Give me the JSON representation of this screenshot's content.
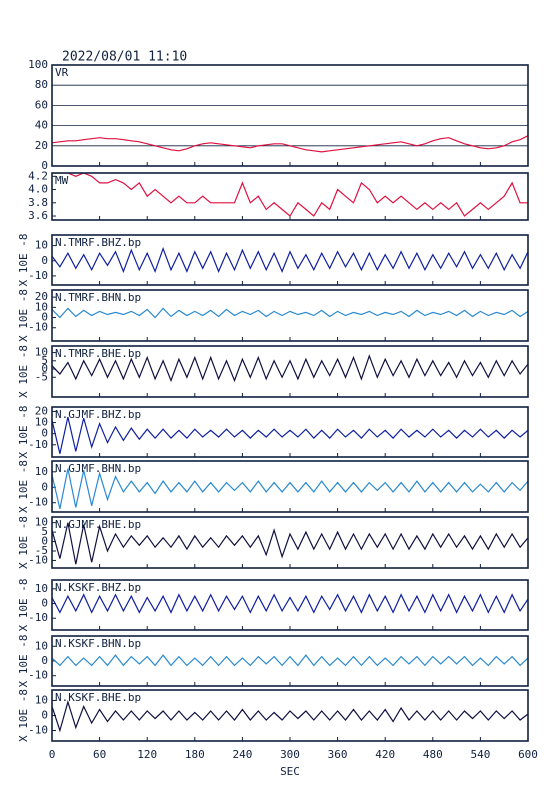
{
  "chart_data": {
    "type": "line",
    "title": "2022/08/01  11:10",
    "xlabel": "SEC",
    "x": [
      0,
      10,
      20,
      30,
      40,
      50,
      60,
      70,
      80,
      90,
      100,
      110,
      120,
      130,
      140,
      150,
      160,
      170,
      180,
      190,
      200,
      210,
      220,
      230,
      240,
      250,
      260,
      270,
      280,
      290,
      300,
      310,
      320,
      330,
      340,
      350,
      360,
      370,
      380,
      390,
      400,
      410,
      420,
      430,
      440,
      450,
      460,
      470,
      480,
      490,
      500,
      510,
      520,
      530,
      540,
      550,
      560,
      570,
      580,
      590,
      600
    ],
    "xlim": [
      0,
      600
    ],
    "xticks": [
      0,
      60,
      120,
      180,
      240,
      300,
      360,
      420,
      480,
      540,
      600
    ],
    "panels": [
      {
        "ylim": [
          0,
          100
        ],
        "yticks": [
          0,
          20,
          40,
          60,
          80,
          100
        ],
        "grid": true,
        "series": [
          {
            "name": "VR",
            "color": "#e01040",
            "values": [
              23,
              24,
              25,
              25,
              26,
              27,
              28,
              27,
              27,
              26,
              25,
              24,
              22,
              20,
              18,
              16,
              15,
              17,
              20,
              22,
              23,
              22,
              21,
              20,
              19,
              18,
              20,
              21,
              22,
              22,
              20,
              18,
              16,
              15,
              14,
              15,
              16,
              17,
              18,
              19,
              20,
              21,
              22,
              23,
              24,
              22,
              20,
              22,
              25,
              27,
              28,
              25,
              22,
              20,
              18,
              17,
              18,
              20,
              24,
              26,
              30
            ]
          }
        ]
      },
      {
        "ylim": [
          3.54,
          4.25
        ],
        "yticks": [
          3.6,
          3.8,
          {
            "value": 4,
            "label": "4.0"
          },
          4.2
        ],
        "grid": false,
        "series": [
          {
            "name": "MW",
            "color": "#e01040",
            "values": [
              4.25,
              4.25,
              4.25,
              4.2,
              4.25,
              4.2,
              4.1,
              4.1,
              4.15,
              4.1,
              4.0,
              4.1,
              3.9,
              4.0,
              3.9,
              3.8,
              3.9,
              3.8,
              3.8,
              3.9,
              3.8,
              3.8,
              3.8,
              3.8,
              4.1,
              3.8,
              3.9,
              3.7,
              3.8,
              3.7,
              3.6,
              3.8,
              3.7,
              3.6,
              3.8,
              3.7,
              4.0,
              3.9,
              3.8,
              4.1,
              4.0,
              3.8,
              3.9,
              3.8,
              3.9,
              3.8,
              3.7,
              3.8,
              3.7,
              3.8,
              3.7,
              3.8,
              3.6,
              3.7,
              3.8,
              3.7,
              3.8,
              3.9,
              4.1,
              3.8,
              3.8
            ]
          }
        ]
      },
      {
        "ylim": [
          -16,
          17
        ],
        "yticks": [
          10,
          0,
          -10
        ],
        "ylabel": "X 10E -8",
        "series": [
          {
            "name": "N.TMRF.BHZ.bp",
            "color": "#1020a0",
            "values": [
              3,
              -4,
              5,
              -5,
              4,
              -6,
              5,
              -3,
              6,
              -7,
              7,
              -6,
              5,
              -7,
              8,
              -6,
              5,
              -7,
              6,
              -5,
              6,
              -7,
              5,
              -6,
              7,
              -5,
              6,
              -6,
              5,
              -7,
              6,
              -5,
              4,
              -6,
              5,
              -5,
              6,
              -4,
              5,
              -6,
              5,
              -6,
              4,
              -5,
              6,
              -5,
              5,
              -6,
              4,
              -5,
              5,
              -4,
              6,
              -5,
              4,
              -5,
              5,
              -6,
              4,
              -5,
              6
            ]
          }
        ]
      },
      {
        "ylim": [
          -23,
          27
        ],
        "yticks": [
          20,
          10,
          0,
          -10
        ],
        "ylabel": "X 10E -8",
        "series": [
          {
            "name": "N.TMRF.BHN.bp",
            "color": "#2a8ad0",
            "values": [
              8,
              0,
              9,
              1,
              7,
              2,
              6,
              3,
              5,
              3,
              6,
              2,
              8,
              0,
              9,
              1,
              7,
              2,
              6,
              2,
              7,
              1,
              8,
              2,
              6,
              3,
              7,
              1,
              6,
              2,
              6,
              3,
              5,
              2,
              7,
              1,
              6,
              2,
              5,
              3,
              6,
              2,
              5,
              3,
              6,
              1,
              7,
              2,
              5,
              3,
              6,
              2,
              7,
              1,
              6,
              2,
              5,
              3,
              7,
              1,
              6
            ]
          }
        ]
      },
      {
        "ylim": [
          -17,
          14
        ],
        "yticks": [
          10,
          5,
          0,
          -5
        ],
        "ylabel": "X 10E -8",
        "series": [
          {
            "name": "N.TMRF.BHE.bp",
            "color": "#101040",
            "values": [
              2,
              -3,
              4,
              -6,
              5,
              -4,
              6,
              -5,
              5,
              -6,
              6,
              -5,
              7,
              -6,
              5,
              -7,
              6,
              -5,
              7,
              -6,
              7,
              -6,
              5,
              -7,
              6,
              -5,
              7,
              -6,
              5,
              -5,
              5,
              -6,
              6,
              -5,
              5,
              -4,
              6,
              -5,
              7,
              -6,
              8,
              -5,
              6,
              -4,
              5,
              -5,
              6,
              -4,
              5,
              -4,
              4,
              -5,
              5,
              -4,
              4,
              -5,
              5,
              -4,
              5,
              -3,
              3
            ]
          }
        ]
      },
      {
        "ylim": [
          -21,
          24
        ],
        "yticks": [
          20,
          10,
          0,
          -10
        ],
        "ylabel": "X 10E -8",
        "series": [
          {
            "name": "N.GJMF.BHZ.bp",
            "color": "#1020a0",
            "values": [
              12,
              -18,
              15,
              -16,
              14,
              -12,
              9,
              -8,
              6,
              -6,
              5,
              -5,
              4,
              -4,
              4,
              -4,
              3,
              -4,
              4,
              -3,
              3,
              -3,
              4,
              -3,
              3,
              -4,
              3,
              -3,
              4,
              -3,
              3,
              -3,
              4,
              -4,
              3,
              -4,
              4,
              -3,
              3,
              -4,
              4,
              -3,
              3,
              -4,
              4,
              -3,
              3,
              -3,
              4,
              -3,
              3,
              -4,
              3,
              -3,
              4,
              -3,
              3,
              -4,
              3,
              -3,
              3
            ]
          }
        ]
      },
      {
        "ylim": [
          -16,
          17
        ],
        "yticks": [
          10,
          0,
          -10
        ],
        "ylabel": "X 10E -8",
        "series": [
          {
            "name": "N.GJMF.BHN.bp",
            "color": "#2a8ad0",
            "values": [
              8,
              -14,
              12,
              -13,
              11,
              -12,
              9,
              -8,
              7,
              -3,
              4,
              -3,
              3,
              -4,
              4,
              -3,
              3,
              -3,
              4,
              -3,
              3,
              -3,
              3,
              -2,
              3,
              -3,
              4,
              -3,
              3,
              -3,
              3,
              -3,
              3,
              -3,
              4,
              -3,
              3,
              -3,
              3,
              -3,
              3,
              -2,
              3,
              -3,
              3,
              -3,
              4,
              -3,
              3,
              -3,
              3,
              -3,
              3,
              -3,
              2,
              -3,
              3,
              -3,
              3,
              -2,
              4
            ]
          }
        ]
      },
      {
        "ylim": [
          -14,
          13
        ],
        "yticks": [
          10,
          5,
          0,
          -5,
          -10
        ],
        "ylabel": "X 10E -8",
        "series": [
          {
            "name": "N.GJMF.BHE.bp",
            "color": "#101040",
            "values": [
              6,
              -9,
              10,
              -12,
              9,
              -11,
              8,
              -5,
              4,
              -3,
              3,
              -2,
              3,
              -3,
              2,
              -3,
              3,
              -4,
              3,
              -3,
              2,
              -3,
              3,
              -2,
              3,
              -3,
              3,
              -7,
              6,
              -8,
              4,
              -4,
              5,
              -4,
              4,
              -4,
              5,
              -4,
              4,
              -4,
              4,
              -3,
              4,
              -4,
              4,
              -4,
              3,
              -4,
              4,
              -3,
              4,
              -3,
              3,
              -4,
              3,
              -4,
              4,
              -3,
              4,
              -3,
              2
            ]
          }
        ]
      },
      {
        "ylim": [
          -18,
          16
        ],
        "yticks": [
          10,
          0,
          -10
        ],
        "ylabel": "X 10E -8",
        "series": [
          {
            "name": "N.KSKF.BHZ.bp",
            "color": "#1020a0",
            "values": [
              4,
              -6,
              5,
              -5,
              6,
              -6,
              5,
              -5,
              6,
              -5,
              5,
              -6,
              4,
              -5,
              5,
              -6,
              6,
              -5,
              5,
              -5,
              6,
              -5,
              5,
              -4,
              5,
              -6,
              5,
              -5,
              6,
              -5,
              4,
              -5,
              5,
              -6,
              5,
              -4,
              6,
              -5,
              5,
              -6,
              6,
              -5,
              5,
              -6,
              6,
              -5,
              5,
              -6,
              6,
              -5,
              6,
              -6,
              5,
              -5,
              6,
              -6,
              5,
              -6,
              6,
              -5,
              3
            ]
          }
        ]
      },
      {
        "ylim": [
          -17,
          17
        ],
        "yticks": [
          10,
          0,
          -10
        ],
        "ylabel": "X 10E -8",
        "series": [
          {
            "name": "N.KSKF.BHN.bp",
            "color": "#2a8ad0",
            "values": [
              2,
              -3,
              3,
              -3,
              2,
              -3,
              3,
              -3,
              4,
              -3,
              3,
              -2,
              3,
              -3,
              4,
              -3,
              3,
              -3,
              2,
              -3,
              3,
              -3,
              3,
              -3,
              2,
              -3,
              3,
              -2,
              3,
              -3,
              3,
              -3,
              4,
              -3,
              3,
              -3,
              2,
              -3,
              3,
              -3,
              3,
              -3,
              2,
              -3,
              3,
              -2,
              3,
              -3,
              3,
              -2,
              3,
              -2,
              3,
              -3,
              2,
              -3,
              3,
              -2,
              3,
              -3,
              2
            ]
          }
        ]
      },
      {
        "ylim": [
          -17,
          17
        ],
        "yticks": [
          10,
          0,
          -10
        ],
        "ylabel": "X 10E -8",
        "series": [
          {
            "name": "N.KSKF.BHE.bp",
            "color": "#101040",
            "values": [
              6,
              -10,
              9,
              -8,
              6,
              -5,
              4,
              -4,
              3,
              -3,
              3,
              -3,
              3,
              -2,
              3,
              -3,
              3,
              -3,
              2,
              -3,
              3,
              -3,
              3,
              -3,
              4,
              -3,
              3,
              -3,
              2,
              -3,
              3,
              -2,
              3,
              -3,
              3,
              -3,
              3,
              -3,
              4,
              -3,
              3,
              -3,
              4,
              -4,
              5,
              -3,
              3,
              -3,
              3,
              -3,
              3,
              -3,
              3,
              -2,
              3,
              -3,
              3,
              -2,
              3,
              -3,
              1
            ]
          }
        ]
      }
    ]
  }
}
